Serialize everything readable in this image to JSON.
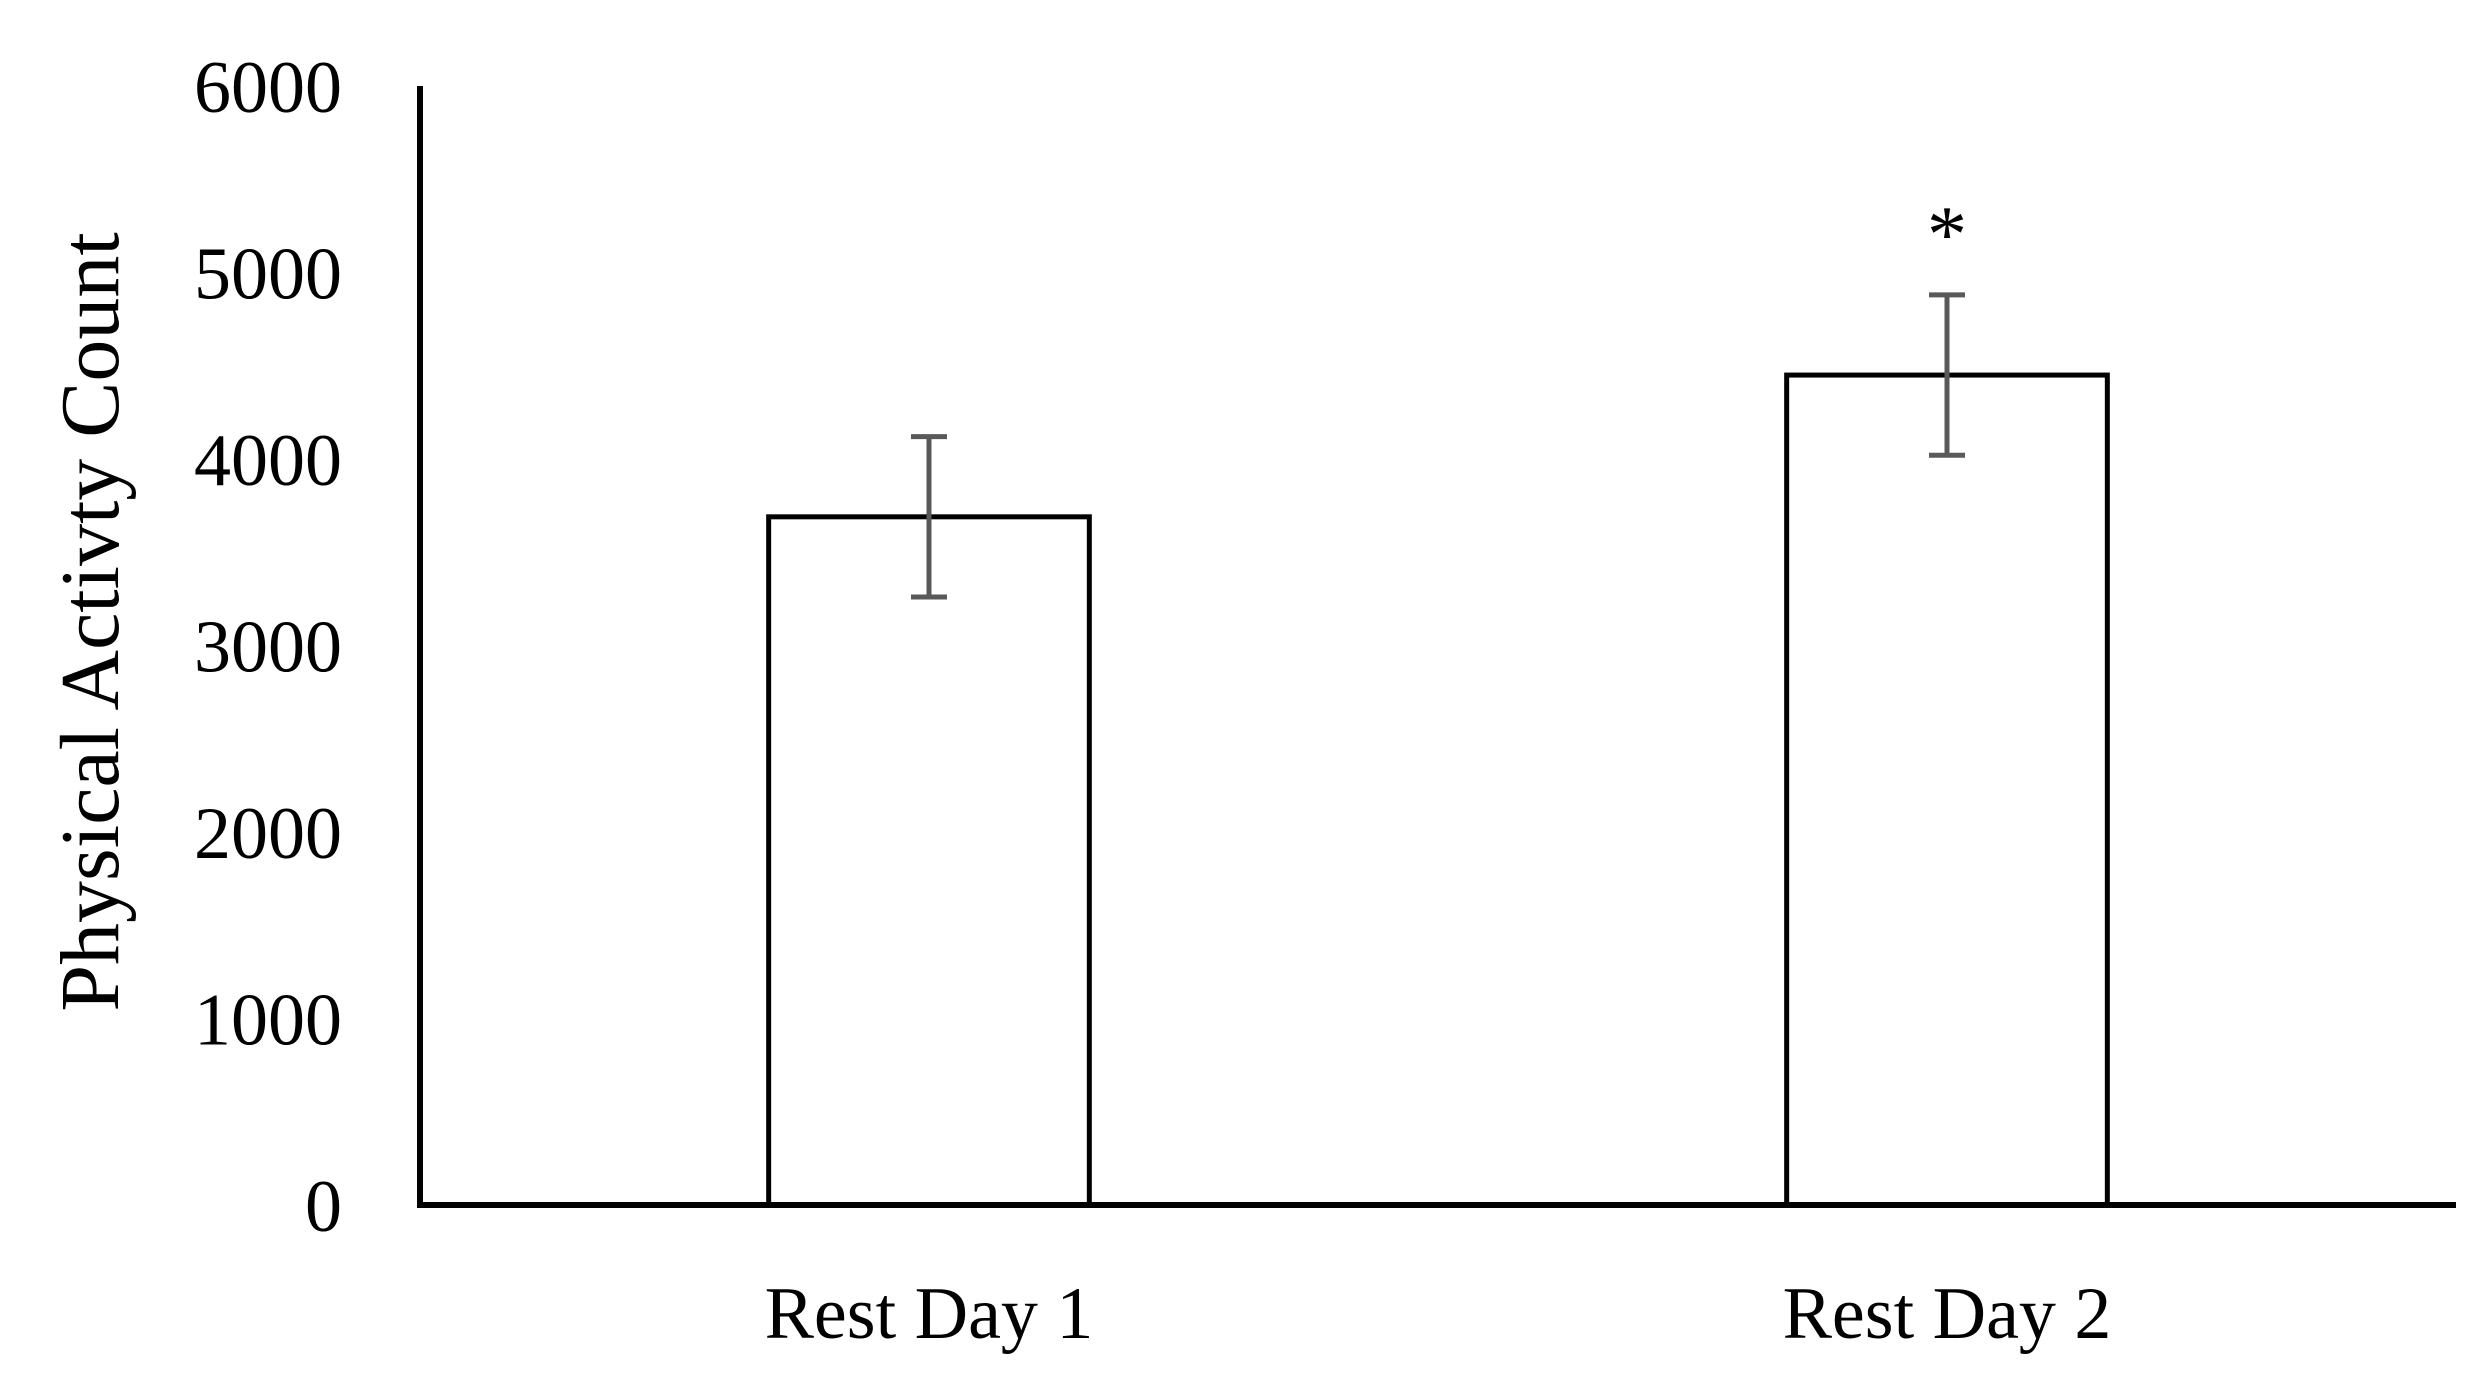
{
  "chart_data": {
    "type": "bar",
    "title": "",
    "xlabel": "",
    "ylabel": "Physical Activty Count",
    "ylim": [
      0,
      6000
    ],
    "yticks": [
      0,
      1000,
      2000,
      3000,
      4000,
      5000,
      6000
    ],
    "categories": [
      "Rest Day 1",
      "Rest Day 2"
    ],
    "values": [
      3690,
      4450
    ],
    "error": [
      430,
      430
    ],
    "annotations": [
      "",
      "*"
    ],
    "grid": false,
    "legend": "none"
  }
}
